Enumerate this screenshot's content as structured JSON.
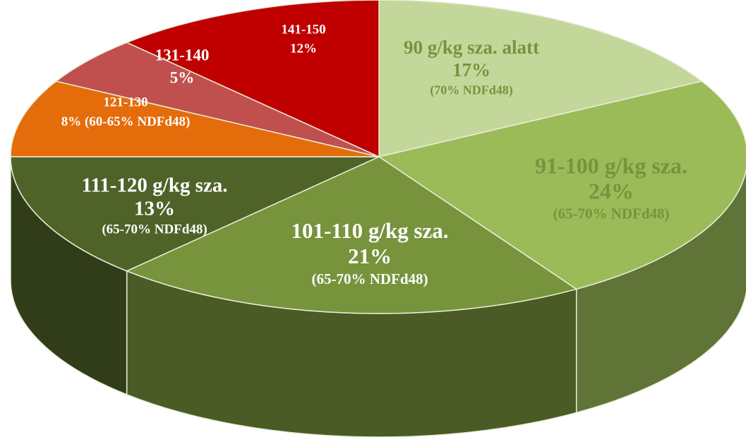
{
  "chart_data": {
    "type": "pie",
    "categories": [
      "90 g/kg sza. alatt",
      "91-100 g/kg sza.",
      "101-110 g/kg sza.",
      "111-120 g/kg sza.",
      "121-130",
      "131-140",
      "141-150"
    ],
    "values": [
      17,
      24,
      21,
      13,
      8,
      5,
      12
    ],
    "value_labels": [
      "17%",
      "24%",
      "21%",
      "13%",
      "8%",
      "5%",
      "12%"
    ],
    "notes": [
      "(70% NDFd48)",
      "(65-70% NDFd48)",
      "(65-70% NDFd48)",
      "(65-70% NDFd48)",
      "(60-65% NDFd48)",
      null,
      null
    ],
    "colors": [
      "#c4d79b",
      "#9bbb59",
      "#77933c",
      "#4f6228",
      "#e46c0a",
      "#c0504d",
      "#c00000"
    ],
    "label_colors": [
      "#77933c",
      "#77933c",
      "#ffffff",
      "#ffffff",
      "#ffffff",
      "#ffffff",
      "#ffffff"
    ]
  }
}
